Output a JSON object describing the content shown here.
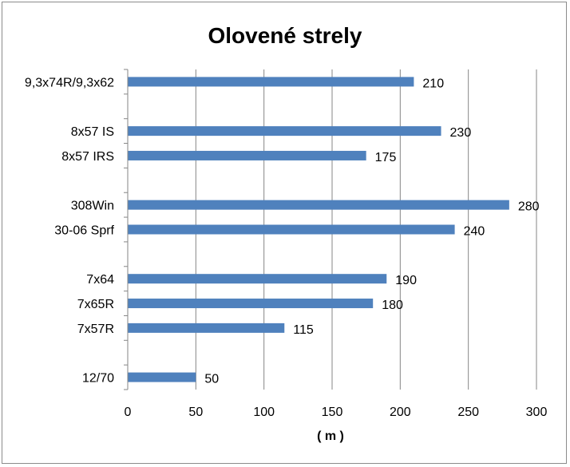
{
  "chart_data": {
    "type": "bar",
    "orientation": "horizontal",
    "title": "Olovené strely",
    "xlabel": "( m )",
    "ylabel": "",
    "xlim": [
      0,
      300
    ],
    "xticks": [
      "0",
      "50",
      "100",
      "150",
      "200",
      "250",
      "300"
    ],
    "grid": true,
    "legend": "none",
    "bar_color": "#4f81bd",
    "categories": [
      "9,3x74R/9,3x62",
      "",
      "8x57 IS",
      "8x57 IRS",
      "",
      "308Win",
      "30-06 Sprf",
      "",
      "7x64",
      "7x65R",
      "7x57R",
      "",
      "12/70"
    ],
    "values": [
      210,
      null,
      230,
      175,
      null,
      280,
      240,
      null,
      190,
      180,
      115,
      null,
      50
    ]
  }
}
